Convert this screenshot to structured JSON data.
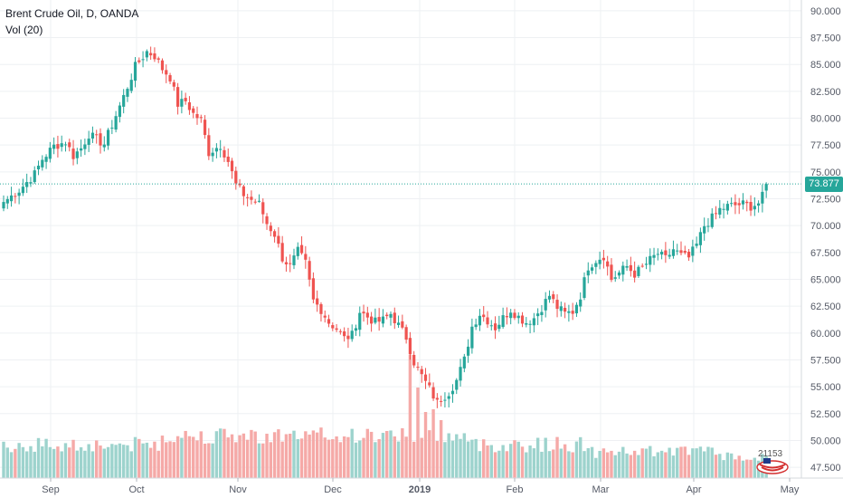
{
  "header": {
    "title": "Brent Crude Oil, D, OANDA",
    "indicator": "Vol (20)"
  },
  "last_price_label": "73.877",
  "logo_text": "21153",
  "colors": {
    "up": "#26a69a",
    "down": "#ef5350",
    "vol_up": "#9dd3cd",
    "vol_down": "#f5a9a7",
    "grid": "#eef0f3",
    "text": "#131722",
    "axis_text": "#555a66"
  },
  "chart_data": {
    "type": "candlestick",
    "title": "Brent Crude Oil, D, OANDA",
    "x_labels": [
      "Sep",
      "Oct",
      "Nov",
      "Dec",
      "2019",
      "Feb",
      "Mar",
      "Apr",
      "May"
    ],
    "y_ticks": [
      "47.500",
      "50.000",
      "52.500",
      "55.000",
      "57.500",
      "60.000",
      "62.500",
      "65.000",
      "67.500",
      "70.000",
      "72.500",
      "75.000",
      "77.500",
      "80.000",
      "82.500",
      "85.000",
      "87.500",
      "90.000"
    ],
    "ylim": [
      46.5,
      91.0
    ],
    "last_price": 73.877,
    "grid": true,
    "anchors": [
      [
        0,
        72.2
      ],
      [
        4,
        73.3
      ],
      [
        8,
        74.8
      ],
      [
        10,
        76.2
      ],
      [
        13,
        77.4
      ],
      [
        16,
        77.8
      ],
      [
        18,
        76.5
      ],
      [
        20,
        77.2
      ],
      [
        22,
        78.5
      ],
      [
        24,
        78.0
      ],
      [
        26,
        77.6
      ],
      [
        28,
        79.4
      ],
      [
        31,
        82.0
      ],
      [
        34,
        84.8
      ],
      [
        37,
        86.2
      ],
      [
        39,
        85.8
      ],
      [
        41,
        84.6
      ],
      [
        43,
        83.8
      ],
      [
        45,
        81.3
      ],
      [
        47,
        81.6
      ],
      [
        49,
        80.4
      ],
      [
        51,
        79.8
      ],
      [
        53,
        76.8
      ],
      [
        56,
        77.5
      ],
      [
        58,
        76.0
      ],
      [
        60,
        73.8
      ],
      [
        62,
        72.9
      ],
      [
        64,
        72.4
      ],
      [
        66,
        72.0
      ],
      [
        68,
        70.2
      ],
      [
        70,
        69.2
      ],
      [
        72,
        67.0
      ],
      [
        74,
        66.2
      ],
      [
        76,
        67.6
      ],
      [
        78,
        66.5
      ],
      [
        80,
        63.0
      ],
      [
        82,
        62.2
      ],
      [
        84,
        61.0
      ],
      [
        86,
        60.4
      ],
      [
        88,
        59.5
      ],
      [
        90,
        59.8
      ],
      [
        92,
        62.0
      ],
      [
        94,
        61.5
      ],
      [
        96,
        61.0
      ],
      [
        98,
        61.2
      ],
      [
        100,
        61.8
      ],
      [
        102,
        60.7
      ],
      [
        104,
        59.6
      ],
      [
        106,
        57.3
      ],
      [
        108,
        56.0
      ],
      [
        110,
        54.8
      ],
      [
        112,
        53.5
      ],
      [
        113,
        53.9
      ],
      [
        115,
        54.5
      ],
      [
        117,
        55.6
      ],
      [
        119,
        57.5
      ],
      [
        121,
        60.6
      ],
      [
        123,
        61.8
      ],
      [
        125,
        61.2
      ],
      [
        127,
        60.5
      ],
      [
        129,
        61.4
      ],
      [
        131,
        62.2
      ],
      [
        133,
        61.5
      ],
      [
        135,
        61.0
      ],
      [
        137,
        61.4
      ],
      [
        139,
        62.4
      ],
      [
        141,
        63.5
      ],
      [
        143,
        62.4
      ],
      [
        145,
        61.8
      ],
      [
        147,
        62.0
      ],
      [
        149,
        63.5
      ],
      [
        151,
        66.2
      ],
      [
        153,
        66.8
      ],
      [
        155,
        67.2
      ],
      [
        157,
        65.0
      ],
      [
        159,
        65.6
      ],
      [
        161,
        66.2
      ],
      [
        163,
        65.5
      ],
      [
        165,
        66.1
      ],
      [
        167,
        66.8
      ],
      [
        169,
        67.4
      ],
      [
        171,
        66.9
      ],
      [
        173,
        67.8
      ],
      [
        175,
        67.2
      ],
      [
        177,
        67.0
      ],
      [
        179,
        68.2
      ],
      [
        181,
        70.0
      ],
      [
        183,
        70.7
      ],
      [
        185,
        71.5
      ],
      [
        187,
        71.8
      ],
      [
        189,
        71.9
      ],
      [
        191,
        72.0
      ],
      [
        193,
        71.8
      ],
      [
        195,
        72.1
      ],
      [
        196,
        72.7
      ],
      [
        197,
        73.877
      ]
    ],
    "volume_spikes": [
      [
        105,
        4.2
      ],
      [
        107,
        3.0
      ],
      [
        109,
        2.1
      ],
      [
        111,
        2.2
      ],
      [
        113,
        1.8
      ],
      [
        103,
        1.5
      ],
      [
        101,
        1.2
      ],
      [
        99,
        1.4
      ],
      [
        97,
        1.1
      ],
      [
        74,
        1.3
      ],
      [
        76,
        1.1
      ],
      [
        86,
        1.2
      ],
      [
        88,
        1.2
      ]
    ]
  },
  "axis": {
    "x_positions_note": ""
  }
}
